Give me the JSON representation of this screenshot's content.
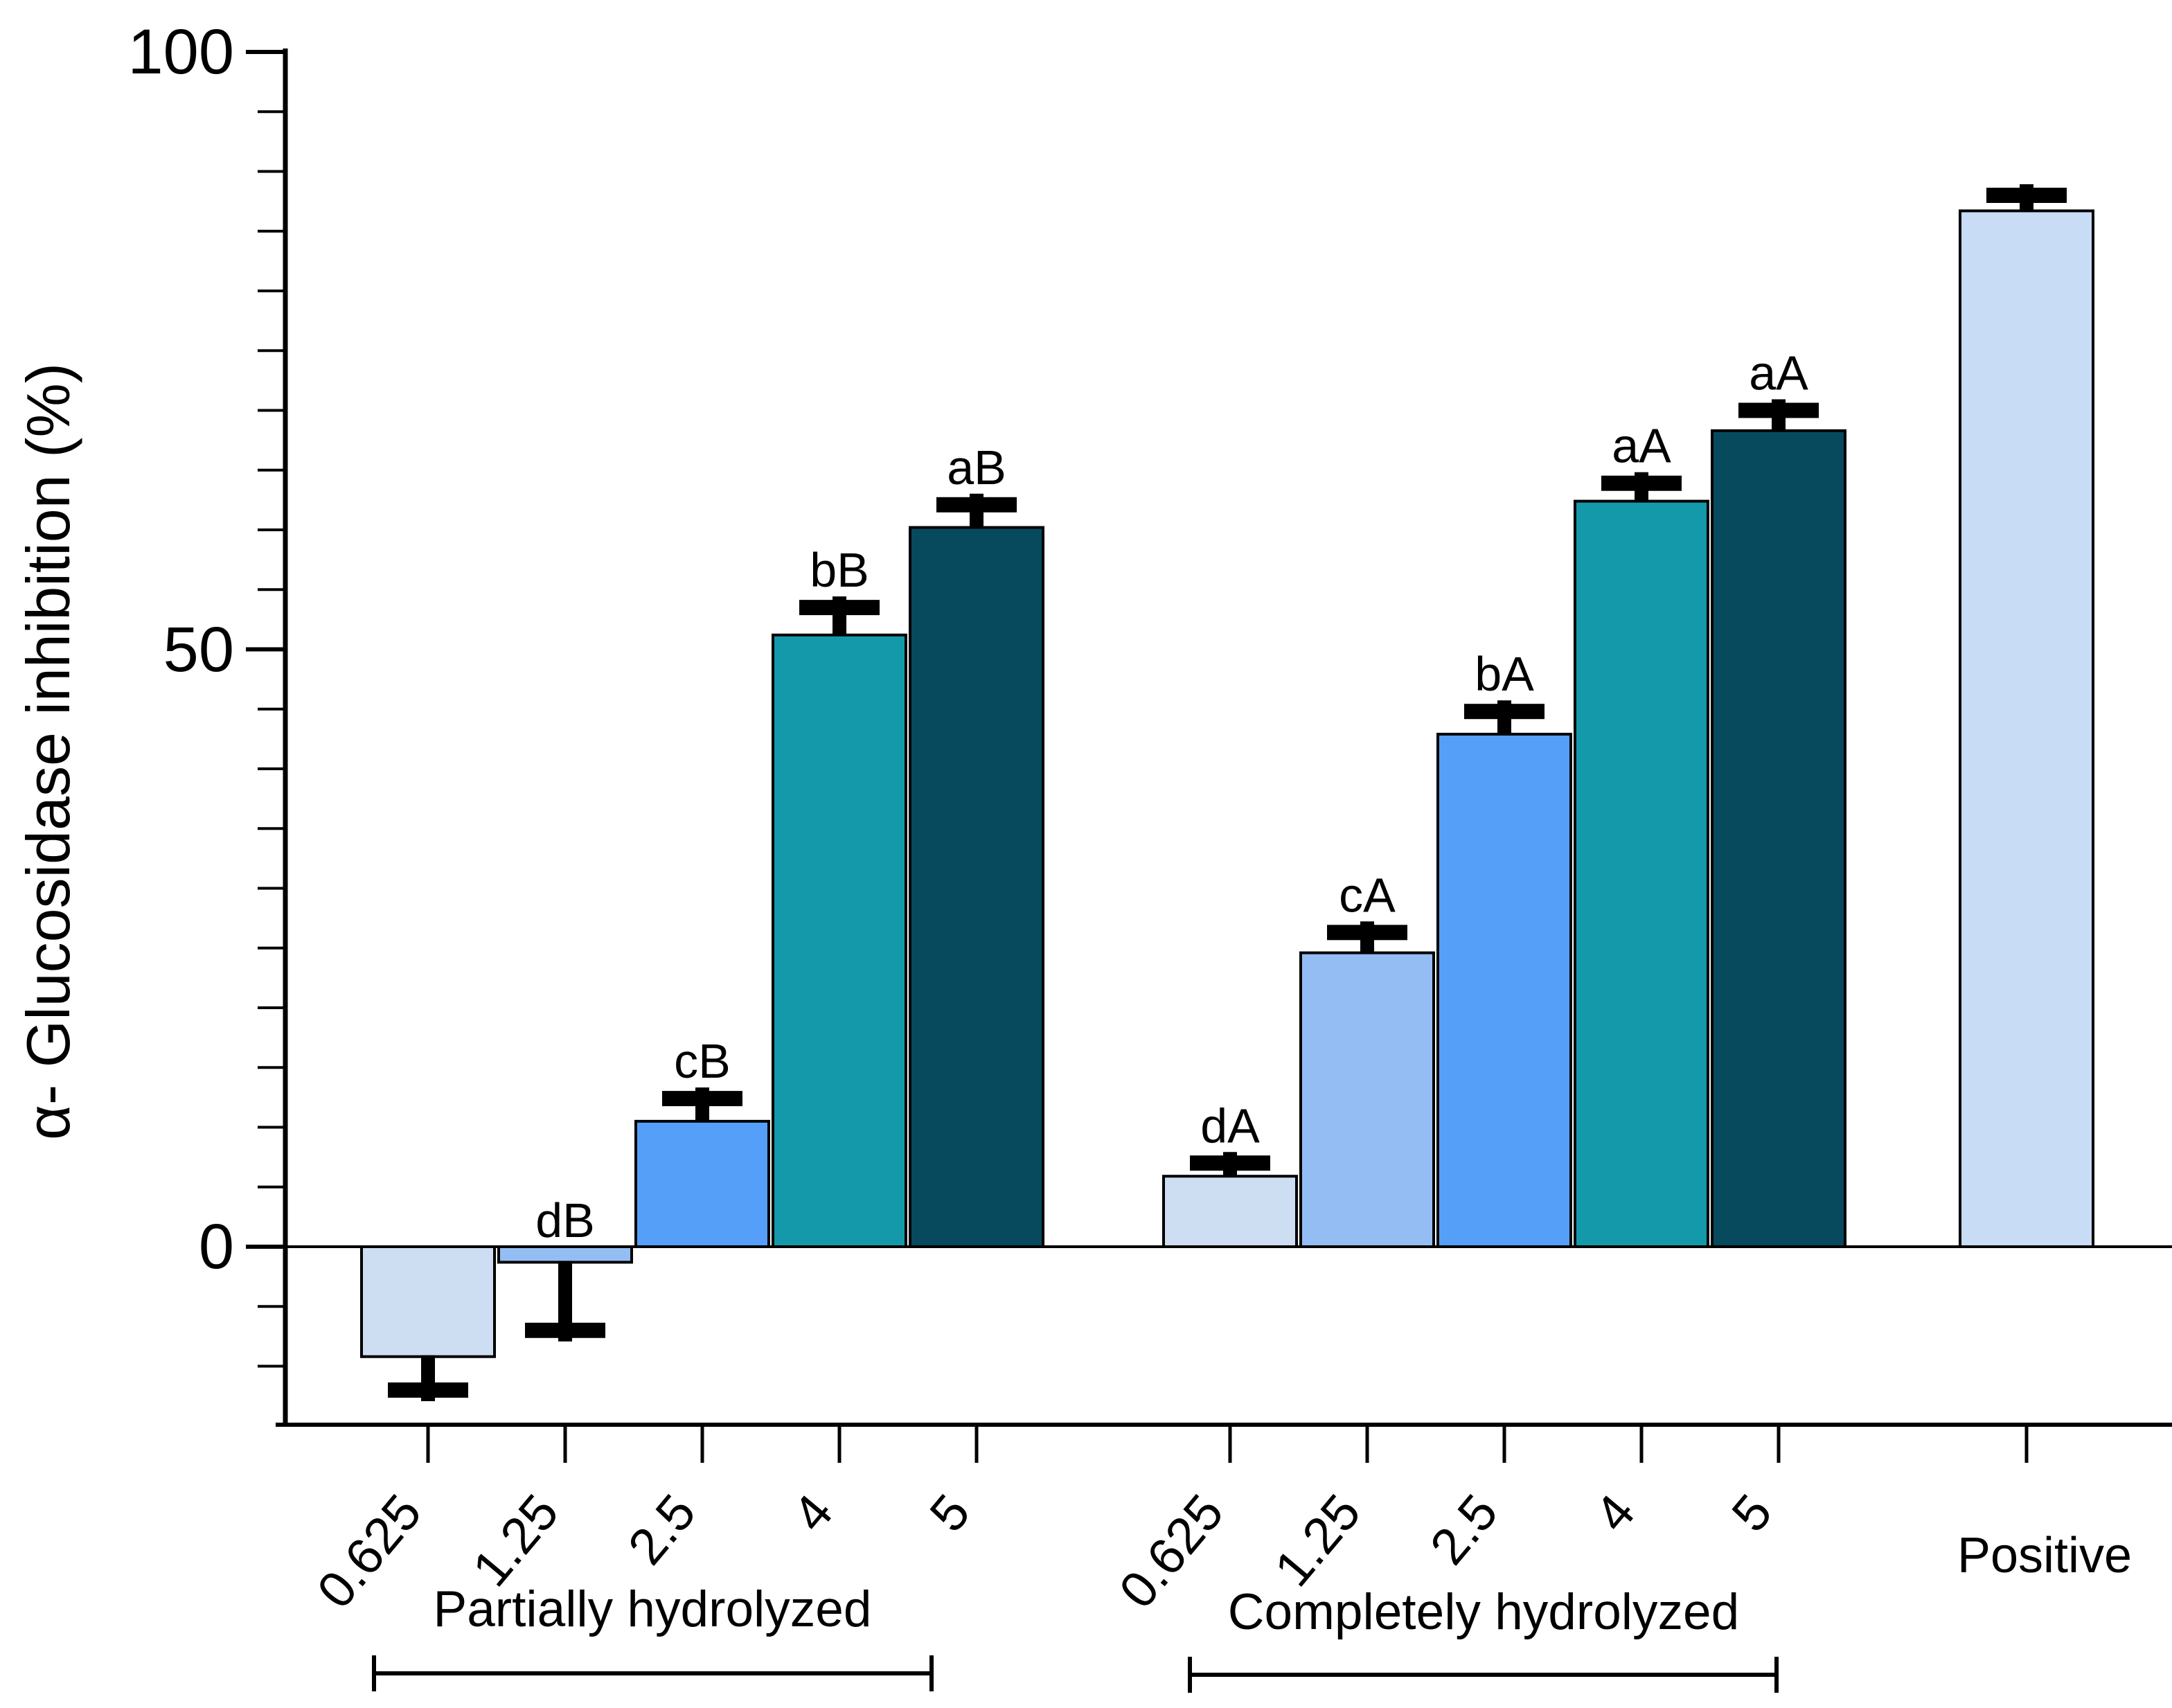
{
  "chart_data": {
    "type": "bar",
    "title": "",
    "ylabel": "α- Glucosidase inhibition (%)",
    "ytick_labels": [
      "0",
      "50",
      "100"
    ],
    "yticks": [
      0,
      50,
      100
    ],
    "minor_tick_step": 5,
    "ylim": [
      -15,
      100
    ],
    "grid": false,
    "legend": "none",
    "categories": [
      "0.625",
      "1.25",
      "2.5",
      "4",
      "5"
    ],
    "bar_colors": [
      "#cdddf2",
      "#94bdf4",
      "#559ff9",
      "#1499ab",
      "#074a5e"
    ],
    "axis_color": "#000000",
    "background": "#ffffff",
    "groups": [
      {
        "name": "Partially hydrolyzed",
        "series": [
          {
            "category": "0.625",
            "value": -9.2,
            "error": 2.8,
            "sig": ""
          },
          {
            "category": "1.25",
            "value": -1.3,
            "error": 5.7,
            "sig": "dB"
          },
          {
            "category": "2.5",
            "value": 10.5,
            "error": 1.9,
            "sig": "cB"
          },
          {
            "category": "4",
            "value": 51.2,
            "error": 2.3,
            "sig": "bB"
          },
          {
            "category": "5",
            "value": 60.2,
            "error": 1.9,
            "sig": "aB"
          }
        ]
      },
      {
        "name": "Completely  hydrolyzed",
        "series": [
          {
            "category": "0.625",
            "value": 5.9,
            "error": 1.1,
            "sig": "dA"
          },
          {
            "category": "1.25",
            "value": 24.6,
            "error": 1.7,
            "sig": "cA"
          },
          {
            "category": "2.5",
            "value": 42.9,
            "error": 1.9,
            "sig": "bA"
          },
          {
            "category": "4",
            "value": 62.4,
            "error": 1.5,
            "sig": "aA"
          },
          {
            "category": "5",
            "value": 68.3,
            "error": 1.7,
            "sig": "aA"
          }
        ]
      }
    ],
    "positive_control": {
      "label": "Positive",
      "value": 86.7,
      "error": 1.3,
      "color": "#c8dcf6"
    }
  }
}
